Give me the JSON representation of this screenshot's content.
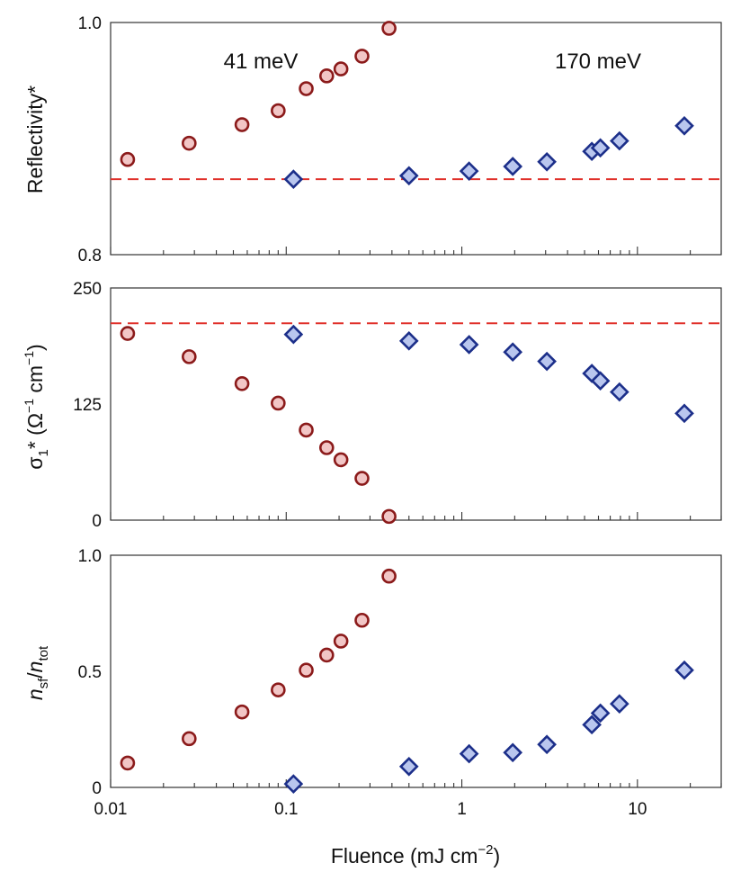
{
  "colors": {
    "series_41_fill": "#f2c6c6",
    "series_41_stroke": "#8b1a1a",
    "series_170_fill": "#b9c6ee",
    "series_170_stroke": "#1c2f8a",
    "reference_line": "#e0302a",
    "label_41": "#8b1a1a",
    "label_170": "#1c2f8a"
  },
  "chart_data": [
    {
      "type": "scatter",
      "panel": "top",
      "xscale": "log",
      "xlim": [
        0.01,
        30
      ],
      "ylim": [
        0.8,
        1.0
      ],
      "ylabel": "Reflectivity*",
      "yticks": [
        0.8,
        1.0
      ],
      "yticklabels": [
        "0.8",
        "1.0"
      ],
      "reference_line": 0.865,
      "annotations": [
        {
          "text": "41 meV",
          "series": "41 meV"
        },
        {
          "text": "170 meV",
          "series": "170 meV"
        }
      ],
      "series": [
        {
          "name": "41 meV",
          "marker": "circle",
          "x": [
            0.0125,
            0.028,
            0.056,
            0.09,
            0.13,
            0.17,
            0.205,
            0.27,
            0.385
          ],
          "y": [
            0.882,
            0.896,
            0.912,
            0.924,
            0.943,
            0.954,
            0.96,
            0.971,
            0.995
          ]
        },
        {
          "name": "170 meV",
          "marker": "diamond",
          "x": [
            0.11,
            0.5,
            1.1,
            1.95,
            3.05,
            5.5,
            6.15,
            7.9,
            18.5
          ],
          "y": [
            0.865,
            0.868,
            0.872,
            0.876,
            0.88,
            0.889,
            0.892,
            0.898,
            0.911
          ]
        }
      ]
    },
    {
      "type": "scatter",
      "panel": "middle",
      "xscale": "log",
      "xlim": [
        0.01,
        30
      ],
      "ylim": [
        0,
        250
      ],
      "ylabel": "σ₁* (Ω⁻¹ cm⁻¹)",
      "yticks": [
        0,
        125,
        250
      ],
      "yticklabels": [
        "0",
        "125",
        "250"
      ],
      "reference_line": 212,
      "series": [
        {
          "name": "41 meV",
          "marker": "circle",
          "x": [
            0.0125,
            0.028,
            0.056,
            0.09,
            0.13,
            0.17,
            0.205,
            0.27,
            0.385
          ],
          "y": [
            201,
            176,
            147,
            126,
            97,
            78,
            65,
            45,
            4
          ]
        },
        {
          "name": "170 meV",
          "marker": "diamond",
          "x": [
            0.11,
            0.5,
            1.1,
            1.95,
            3.05,
            5.5,
            6.15,
            7.9,
            18.5
          ],
          "y": [
            200,
            193,
            189,
            181,
            171,
            158,
            150,
            138,
            115
          ]
        }
      ]
    },
    {
      "type": "scatter",
      "panel": "bottom",
      "xscale": "log",
      "xlim": [
        0.01,
        30
      ],
      "ylim": [
        0,
        1.0
      ],
      "xlabel": "Fluence (mJ cm⁻²)",
      "ylabel": "nsf/ntot",
      "xticks": [
        0.01,
        0.1,
        1,
        10
      ],
      "xticklabels": [
        "0.01",
        "0.1",
        "1",
        "10"
      ],
      "yticks": [
        0,
        0.5,
        1.0
      ],
      "yticklabels": [
        "0",
        "0.5",
        "1.0"
      ],
      "series": [
        {
          "name": "41 meV",
          "marker": "circle",
          "x": [
            0.0125,
            0.028,
            0.056,
            0.09,
            0.13,
            0.17,
            0.205,
            0.27,
            0.385
          ],
          "y": [
            0.105,
            0.21,
            0.325,
            0.42,
            0.505,
            0.57,
            0.63,
            0.72,
            0.91
          ]
        },
        {
          "name": "170 meV",
          "marker": "diamond",
          "x": [
            0.11,
            0.5,
            1.1,
            1.95,
            3.05,
            5.5,
            6.15,
            7.9,
            18.5
          ],
          "y": [
            0.015,
            0.09,
            0.145,
            0.15,
            0.185,
            0.27,
            0.32,
            0.36,
            0.505
          ]
        }
      ]
    }
  ]
}
